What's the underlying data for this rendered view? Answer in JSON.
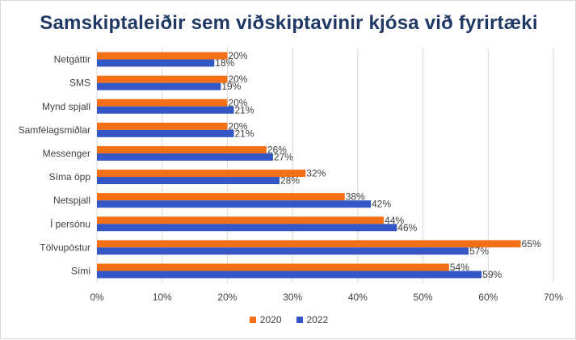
{
  "colors": {
    "series_2020": "#f47016",
    "series_2022": "#3457c5",
    "grid": "#d9d9d9",
    "title": "#1f3864"
  },
  "chart_data": {
    "type": "bar",
    "orientation": "horizontal",
    "title": "Samskiptaleiðir sem viðskiptavinir kjósa við fyrirtæki",
    "xlabel": "",
    "ylabel": "",
    "categories": [
      "Netgáttir",
      "SMS",
      "Mynd spjall",
      "Samfélagsmiðlar",
      "Messenger",
      "Síma öpp",
      "Netspjall",
      "Í persónu",
      "Tölvupóstur",
      "Sími"
    ],
    "series": [
      {
        "name": "2020",
        "values": [
          20,
          20,
          20,
          20,
          26,
          32,
          38,
          44,
          65,
          54
        ],
        "labels": [
          "20%",
          "20%",
          "20%",
          "20%",
          "26%",
          "32%",
          "38%",
          "44%",
          "65%",
          "54%"
        ]
      },
      {
        "name": "2022",
        "values": [
          18,
          19,
          21,
          21,
          27,
          28,
          42,
          46,
          57,
          59
        ],
        "labels": [
          "18%",
          "19%",
          "21%",
          "21%",
          "27%",
          "28%",
          "42%",
          "46%",
          "57%",
          "59%"
        ]
      }
    ],
    "xlim": [
      0,
      70
    ],
    "xticks": [
      0,
      10,
      20,
      30,
      40,
      50,
      60,
      70
    ],
    "xtick_labels": [
      "0%",
      "10%",
      "20%",
      "30%",
      "40%",
      "50%",
      "60%",
      "70%"
    ],
    "grid": true,
    "legend_position": "bottom"
  }
}
